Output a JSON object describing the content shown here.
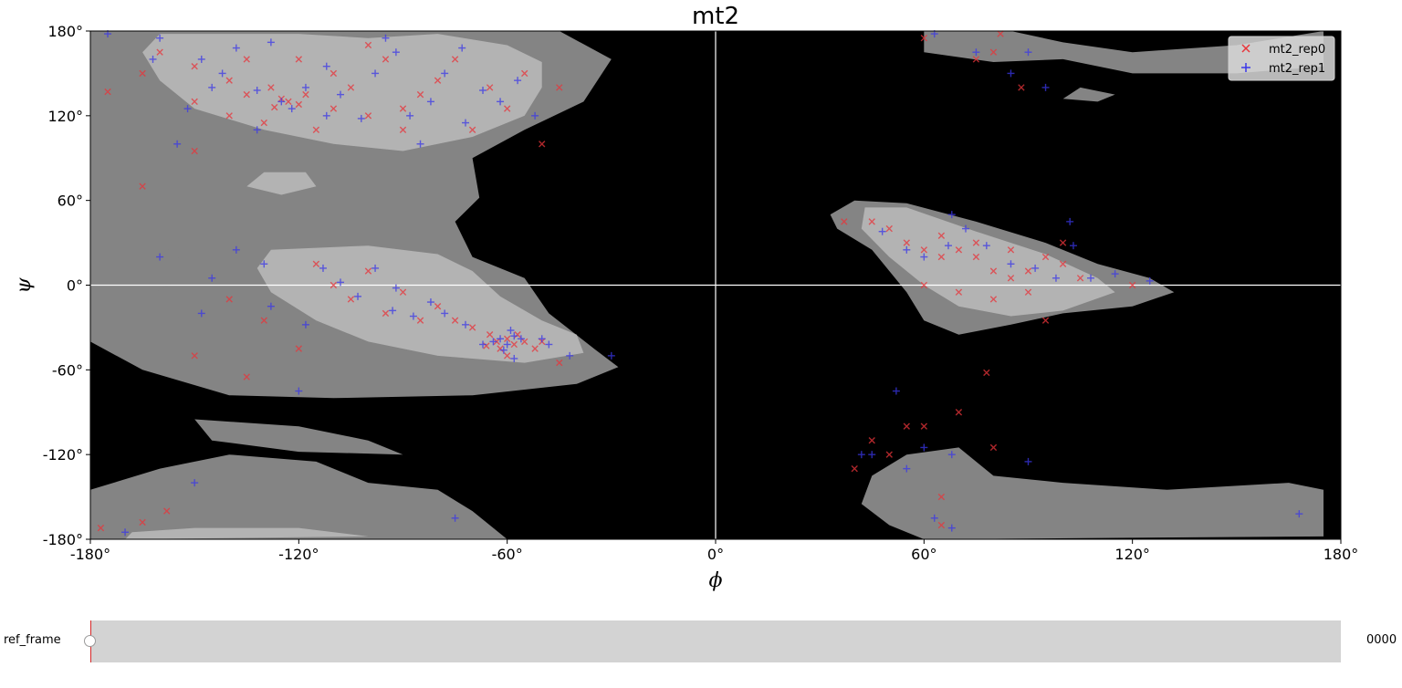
{
  "chart_data": {
    "type": "scatter",
    "title": "mt2",
    "xlabel": "ϕ",
    "ylabel": "ψ",
    "xlim": [
      -180,
      180
    ],
    "ylim": [
      -180,
      180
    ],
    "xticks": [
      -180,
      -120,
      -60,
      0,
      60,
      120,
      180
    ],
    "yticks": [
      -180,
      -120,
      -60,
      0,
      60,
      120,
      180
    ],
    "xtick_labels": [
      "-180°",
      "-120°",
      "-60°",
      "0°",
      "60°",
      "120°",
      "180°"
    ],
    "ytick_labels": [
      "-180°",
      "-120°",
      "-60°",
      "0°",
      "60°",
      "120°",
      "180°"
    ],
    "background": "Ramachandran density contours (black, dark gray, light gray)",
    "grid": false,
    "legend_position": "top-right",
    "series": [
      {
        "name": "mt2_rep0",
        "marker": "x",
        "color": "#e8343a",
        "points": [
          [
            -125,
            132
          ],
          [
            -120,
            128
          ],
          [
            -128,
            140
          ],
          [
            -110,
            150
          ],
          [
            -100,
            120
          ],
          [
            -95,
            160
          ],
          [
            -140,
            145
          ],
          [
            -150,
            130
          ],
          [
            -85,
            135
          ],
          [
            -70,
            110
          ],
          [
            -60,
            125
          ],
          [
            -55,
            150
          ],
          [
            -130,
            115
          ],
          [
            -115,
            110
          ],
          [
            -105,
            140
          ],
          [
            -160,
            165
          ],
          [
            -165,
            150
          ],
          [
            -150,
            155
          ],
          [
            -135,
            160
          ],
          [
            -90,
            125
          ],
          [
            -80,
            145
          ],
          [
            -75,
            160
          ],
          [
            -65,
            140
          ],
          [
            -50,
            100
          ],
          [
            -45,
            140
          ],
          [
            -140,
            120
          ],
          [
            -120,
            160
          ],
          [
            -100,
            170
          ],
          [
            -90,
            110
          ],
          [
            -110,
            125
          ],
          [
            -135,
            135
          ],
          [
            -123,
            130
          ],
          [
            -118,
            135
          ],
          [
            -127,
            126
          ],
          [
            -63,
            -40
          ],
          [
            -60,
            -38
          ],
          [
            -58,
            -42
          ],
          [
            -65,
            -35
          ],
          [
            -62,
            -45
          ],
          [
            -55,
            -40
          ],
          [
            -57,
            -35
          ],
          [
            -66,
            -43
          ],
          [
            -70,
            -30
          ],
          [
            -75,
            -25
          ],
          [
            -80,
            -15
          ],
          [
            -90,
            -5
          ],
          [
            -100,
            10
          ],
          [
            -105,
            -10
          ],
          [
            -110,
            0
          ],
          [
            -95,
            -20
          ],
          [
            -85,
            -25
          ],
          [
            -50,
            -40
          ],
          [
            -45,
            -55
          ],
          [
            -115,
            15
          ],
          [
            -120,
            -45
          ],
          [
            -130,
            -25
          ],
          [
            -135,
            -65
          ],
          [
            -140,
            -10
          ],
          [
            -150,
            -50
          ],
          [
            -60,
            -50
          ],
          [
            -52,
            -45
          ],
          [
            -177,
            -172
          ],
          [
            -165,
            -168
          ],
          [
            -158,
            -160
          ],
          [
            -175,
            137
          ],
          [
            -150,
            95
          ],
          [
            -165,
            70
          ],
          [
            37,
            45
          ],
          [
            45,
            45
          ],
          [
            50,
            40
          ],
          [
            55,
            30
          ],
          [
            60,
            25
          ],
          [
            65,
            20
          ],
          [
            70,
            25
          ],
          [
            75,
            20
          ],
          [
            80,
            10
          ],
          [
            85,
            5
          ],
          [
            90,
            10
          ],
          [
            95,
            20
          ],
          [
            100,
            15
          ],
          [
            105,
            5
          ],
          [
            90,
            -5
          ],
          [
            80,
            -10
          ],
          [
            70,
            -5
          ],
          [
            60,
            0
          ],
          [
            95,
            -25
          ],
          [
            75,
            30
          ],
          [
            65,
            35
          ],
          [
            85,
            25
          ],
          [
            100,
            30
          ],
          [
            120,
            0
          ],
          [
            40,
            -130
          ],
          [
            50,
            -120
          ],
          [
            60,
            -100
          ],
          [
            70,
            -90
          ],
          [
            80,
            -115
          ],
          [
            65,
            -150
          ],
          [
            65,
            -170
          ],
          [
            45,
            -110
          ],
          [
            55,
            -100
          ],
          [
            78,
            -62
          ],
          [
            60,
            175
          ],
          [
            75,
            160
          ],
          [
            80,
            165
          ],
          [
            82,
            178
          ],
          [
            88,
            140
          ]
        ]
      },
      {
        "name": "mt2_rep1",
        "marker": "+",
        "color": "#3a37e8",
        "points": [
          [
            -125,
            130
          ],
          [
            -122,
            125
          ],
          [
            -118,
            140
          ],
          [
            -112,
            155
          ],
          [
            -102,
            118
          ],
          [
            -92,
            165
          ],
          [
            -142,
            150
          ],
          [
            -152,
            125
          ],
          [
            -82,
            130
          ],
          [
            -72,
            115
          ],
          [
            -62,
            130
          ],
          [
            -57,
            145
          ],
          [
            -132,
            110
          ],
          [
            -108,
            135
          ],
          [
            -98,
            150
          ],
          [
            -162,
            160
          ],
          [
            -148,
            160
          ],
          [
            -138,
            168
          ],
          [
            -88,
            120
          ],
          [
            -78,
            150
          ],
          [
            -73,
            168
          ],
          [
            -67,
            138
          ],
          [
            -52,
            120
          ],
          [
            -145,
            140
          ],
          [
            -128,
            172
          ],
          [
            -95,
            175
          ],
          [
            -85,
            100
          ],
          [
            -112,
            120
          ],
          [
            -132,
            138
          ],
          [
            -175,
            178
          ],
          [
            -160,
            175
          ],
          [
            -155,
            100
          ],
          [
            -62,
            -38
          ],
          [
            -60,
            -42
          ],
          [
            -58,
            -36
          ],
          [
            -64,
            -40
          ],
          [
            -61,
            -46
          ],
          [
            -56,
            -38
          ],
          [
            -59,
            -32
          ],
          [
            -67,
            -42
          ],
          [
            -72,
            -28
          ],
          [
            -78,
            -20
          ],
          [
            -82,
            -12
          ],
          [
            -92,
            -2
          ],
          [
            -98,
            12
          ],
          [
            -103,
            -8
          ],
          [
            -108,
            2
          ],
          [
            -93,
            -18
          ],
          [
            -87,
            -22
          ],
          [
            -48,
            -42
          ],
          [
            -42,
            -50
          ],
          [
            -113,
            12
          ],
          [
            -118,
            -28
          ],
          [
            -128,
            -15
          ],
          [
            -138,
            25
          ],
          [
            -148,
            -20
          ],
          [
            -58,
            -52
          ],
          [
            -50,
            -38
          ],
          [
            -30,
            -50
          ],
          [
            -130,
            15
          ],
          [
            -145,
            5
          ],
          [
            -120,
            -75
          ],
          [
            -150,
            -140
          ],
          [
            -170,
            -175
          ],
          [
            -75,
            -165
          ],
          [
            -160,
            20
          ],
          [
            45,
            -120
          ],
          [
            52,
            -75
          ],
          [
            55,
            -130
          ],
          [
            60,
            -115
          ],
          [
            68,
            -120
          ],
          [
            90,
            -125
          ],
          [
            63,
            -165
          ],
          [
            68,
            -172
          ],
          [
            42,
            -120
          ],
          [
            48,
            38
          ],
          [
            55,
            25
          ],
          [
            60,
            20
          ],
          [
            67,
            28
          ],
          [
            72,
            40
          ],
          [
            78,
            28
          ],
          [
            85,
            15
          ],
          [
            92,
            12
          ],
          [
            98,
            5
          ],
          [
            103,
            28
          ],
          [
            108,
            5
          ],
          [
            115,
            8
          ],
          [
            125,
            3
          ],
          [
            102,
            45
          ],
          [
            68,
            50
          ],
          [
            63,
            178
          ],
          [
            75,
            165
          ],
          [
            85,
            150
          ],
          [
            90,
            165
          ],
          [
            95,
            140
          ],
          [
            168,
            -162
          ]
        ]
      }
    ]
  },
  "slider": {
    "label": "ref_frame",
    "value_text": "0000",
    "value_fraction": 0.0
  },
  "colors": {
    "rep0": "#e8343a",
    "rep1": "#3a37e8",
    "region_dark": "#000000",
    "region_mid": "#848484",
    "region_light": "#b3b3b3"
  }
}
